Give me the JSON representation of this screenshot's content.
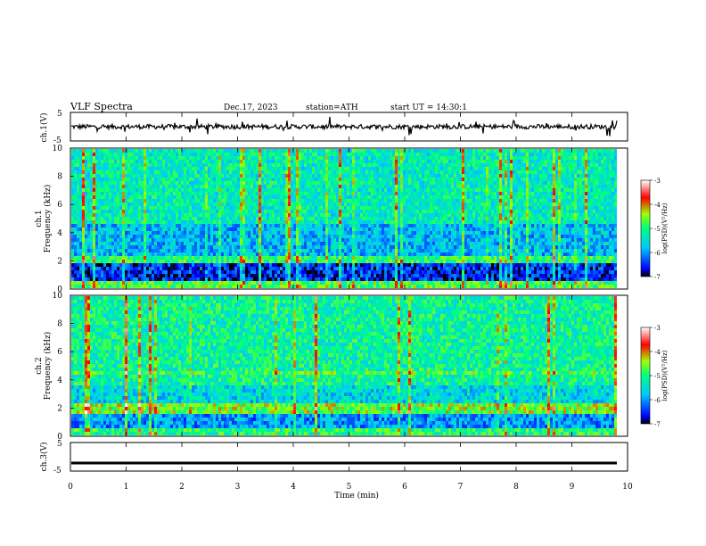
{
  "header": {
    "title": "VLF Spectra",
    "date": "Dec.17, 2023",
    "station": "station=ATH",
    "start_ut": "start UT = 14:30:1"
  },
  "chart_data": [
    {
      "type": "line",
      "name": "ch1-voltage",
      "ylabel": "ch.1(V)",
      "ylim": [
        -5,
        5
      ],
      "yticks": [
        "5",
        "-5"
      ],
      "xlim": [
        0,
        10
      ],
      "baseline": 0,
      "color": "#000000"
    },
    {
      "type": "heatmap",
      "name": "ch1-spectrogram",
      "ylabel_channel": "ch.1",
      "ylabel": "Frequency (kHz)",
      "ylim": [
        0,
        10
      ],
      "yticks": [
        "0",
        "2",
        "4",
        "6",
        "8",
        "10"
      ],
      "xlim": [
        0,
        9.8
      ],
      "colorbar": {
        "label": "log(PSD)(V²/Hz)",
        "range": [
          -7,
          -3
        ],
        "ticks": [
          "-3",
          "-4",
          "-5",
          "-6",
          "-7"
        ],
        "colors": [
          "#000000",
          "#0000ff",
          "#00c8ff",
          "#00ff80",
          "#a0ff00",
          "#ff0000",
          "#ffffff"
        ]
      }
    },
    {
      "type": "heatmap",
      "name": "ch2-spectrogram",
      "ylabel_channel": "ch.2",
      "ylabel": "Frequency (kHz)",
      "ylim": [
        0,
        10
      ],
      "yticks": [
        "0",
        "2",
        "4",
        "6",
        "8",
        "10"
      ],
      "xlim": [
        0,
        9.8
      ],
      "colorbar": {
        "label": "log(PSD)(V²/Hz)",
        "range": [
          -7,
          -3
        ],
        "ticks": [
          "-3",
          "-4",
          "-5",
          "-6",
          "-7"
        ],
        "colors": [
          "#000000",
          "#0000ff",
          "#00c8ff",
          "#00ff80",
          "#a0ff00",
          "#ff0000",
          "#ffffff"
        ]
      }
    },
    {
      "type": "line",
      "name": "ch3-voltage",
      "ylabel": "ch.3(V)",
      "ylim": [
        -5,
        5
      ],
      "yticks": [
        "5",
        "-5"
      ],
      "xlim": [
        0,
        10
      ],
      "baseline": -2.2,
      "color": "#000000"
    }
  ],
  "xaxis": {
    "label": "Time (min)",
    "range": [
      0,
      10
    ],
    "ticks": [
      "0",
      "1",
      "2",
      "3",
      "4",
      "5",
      "6",
      "7",
      "8",
      "9",
      "10"
    ]
  }
}
